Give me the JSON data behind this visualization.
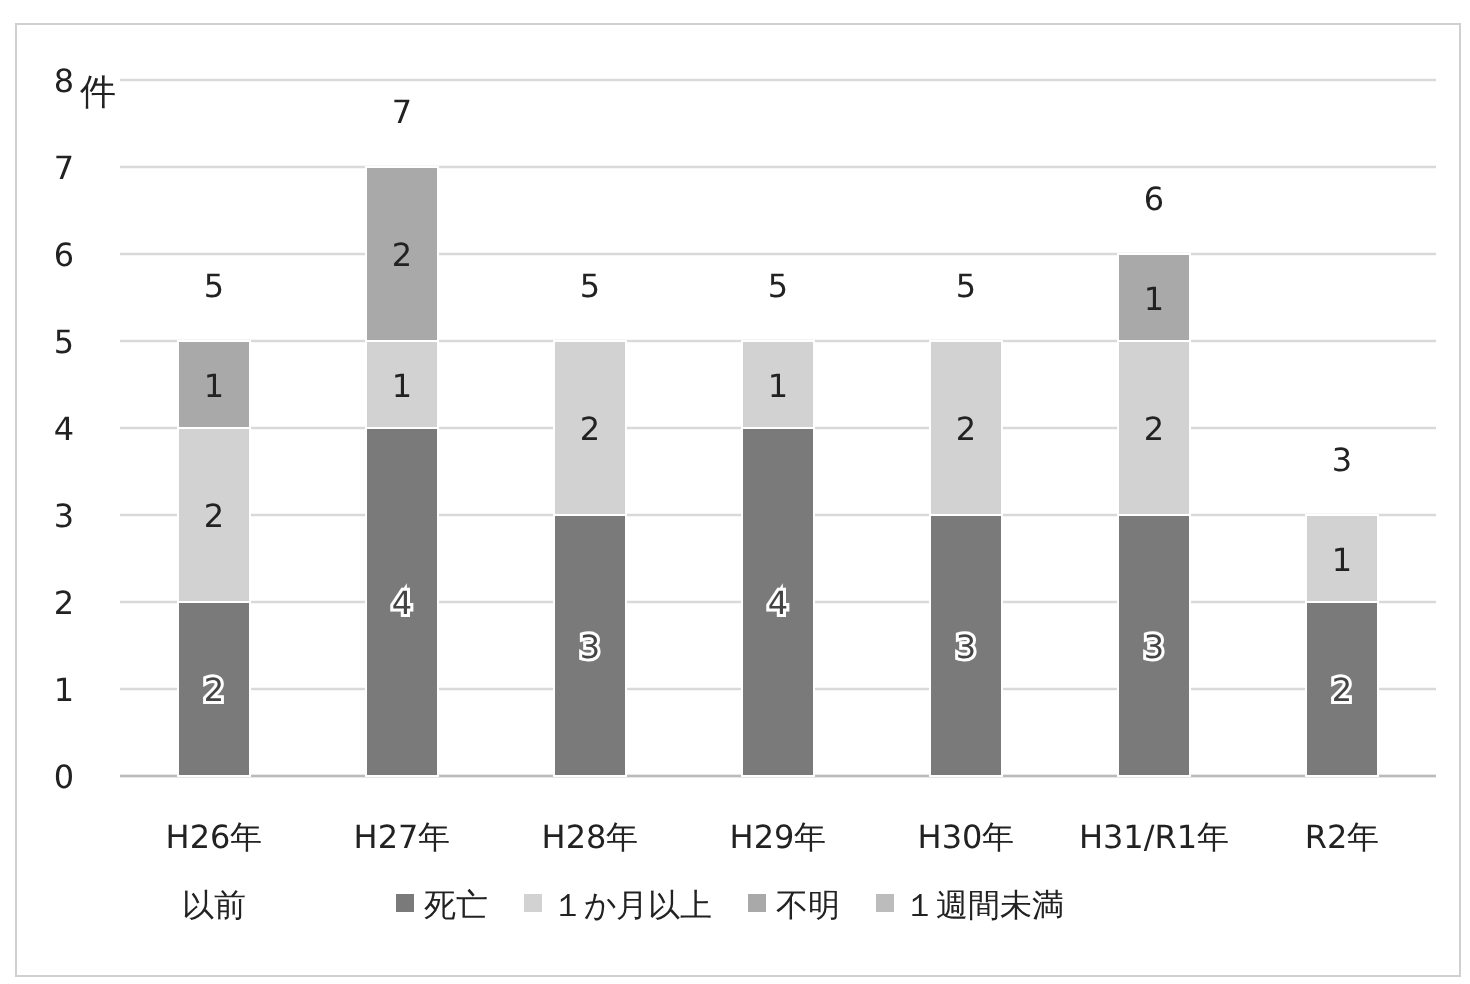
{
  "chart_data": {
    "type": "bar",
    "stacked": true,
    "ylabel": "件",
    "categories": [
      "H26年以前",
      "H27年",
      "H28年",
      "H29年",
      "H30年",
      "H31/R1年",
      "R2年"
    ],
    "series": [
      {
        "name": "死亡",
        "color": "#7a7a7a",
        "values": [
          2,
          4,
          3,
          4,
          3,
          3,
          2
        ]
      },
      {
        "name": "１か月以上",
        "color": "#d2d2d2",
        "values": [
          2,
          1,
          2,
          1,
          2,
          2,
          1
        ]
      },
      {
        "name": "不明",
        "color": "#a9a9a9",
        "values": [
          1,
          2,
          null,
          null,
          null,
          1,
          null
        ]
      },
      {
        "name": "１週間未満",
        "color": "#bcbcbc",
        "values": [
          null,
          null,
          null,
          null,
          null,
          null,
          null
        ]
      }
    ],
    "totals": [
      "5",
      "7",
      "5",
      "5",
      "5",
      "6",
      "3"
    ],
    "data_labels": true,
    "ylim": [
      0,
      8
    ],
    "yticks": [
      0,
      1,
      2,
      3,
      4,
      5,
      6,
      7,
      8
    ],
    "grid": "y",
    "legend": "bottom"
  }
}
